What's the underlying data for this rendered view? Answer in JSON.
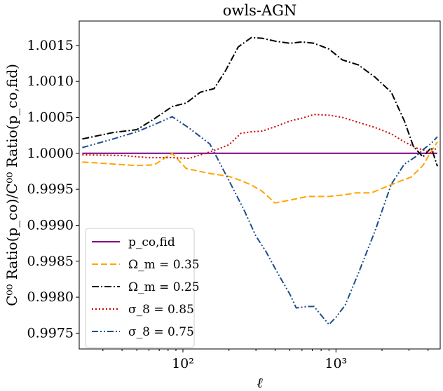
{
  "chart_data": {
    "type": "line",
    "title": "owls-AGN",
    "xlabel": "ℓ",
    "ylabel": "C⁰⁰ Ratio(p_co)/C⁰⁰ Ratio(p_co,fid)",
    "xscale": "log",
    "xlim": [
      21,
      4800
    ],
    "ylim": [
      0.99728,
      1.00184
    ],
    "x_ticks": [
      {
        "value": 100,
        "label": "10²"
      },
      {
        "value": 1000,
        "label": "10³"
      }
    ],
    "y_ticks": [
      {
        "value": 0.9975,
        "label": "0.9975"
      },
      {
        "value": 0.998,
        "label": "0.9980"
      },
      {
        "value": 0.9985,
        "label": "0.9985"
      },
      {
        "value": 0.999,
        "label": "0.9990"
      },
      {
        "value": 0.9995,
        "label": "0.9995"
      },
      {
        "value": 1.0,
        "label": "1.0000"
      },
      {
        "value": 1.0005,
        "label": "1.0005"
      },
      {
        "value": 1.001,
        "label": "1.0010"
      },
      {
        "value": 1.0015,
        "label": "1.0015"
      }
    ],
    "grid": false,
    "legend_position": "lower-left",
    "series": [
      {
        "name": "p_co,fid",
        "color": "#800080",
        "dash": "solid",
        "x": [
          22,
          4600
        ],
        "y": [
          1.0,
          1.0
        ]
      },
      {
        "name": "Ω_m = 0.35",
        "color": "#FFA500",
        "dash": "dashed",
        "x": [
          22,
          50,
          65,
          85,
          105,
          150,
          200,
          240,
          280,
          330,
          400,
          500,
          650,
          900,
          1100,
          1350,
          1700,
          2100,
          2600,
          3100,
          3700,
          4200,
          4600
        ],
        "y": [
          0.99988,
          0.99983,
          0.99984,
          1.0,
          0.99979,
          0.99972,
          0.99968,
          0.99962,
          0.99956,
          0.99947,
          0.99931,
          0.99935,
          0.9994,
          0.9994,
          0.99942,
          0.99945,
          0.99945,
          0.99953,
          0.99961,
          0.99967,
          0.99983,
          1.00003,
          1.00016
        ]
      },
      {
        "name": "Ω_m = 0.25",
        "color": "#000000",
        "dash": "dashdot",
        "x": [
          22,
          35,
          50,
          65,
          85,
          105,
          130,
          160,
          190,
          230,
          280,
          330,
          400,
          500,
          600,
          720,
          900,
          1100,
          1400,
          1800,
          2300,
          2800,
          3200,
          3700,
          4200,
          4600
        ],
        "y": [
          1.0002,
          1.00029,
          1.00033,
          1.00048,
          1.00065,
          1.0007,
          1.00085,
          1.0009,
          1.00115,
          1.00148,
          1.00161,
          1.0016,
          1.00156,
          1.00153,
          1.00155,
          1.00153,
          1.00145,
          1.0013,
          1.00123,
          1.00106,
          1.00085,
          1.00045,
          1.0001,
          0.99995,
          1.00008,
          0.99982
        ]
      },
      {
        "name": "σ_8 = 0.85",
        "color": "#CC0000",
        "dash": "dotted",
        "x": [
          22,
          40,
          60,
          85,
          110,
          140,
          170,
          200,
          240,
          280,
          330,
          400,
          500,
          600,
          720,
          900,
          1100,
          1400,
          1800,
          2300,
          2800,
          3300,
          3800,
          4200,
          4600
        ],
        "y": [
          0.99998,
          0.99997,
          0.99994,
          0.99994,
          0.99993,
          1.0,
          1.00006,
          1.00012,
          1.00028,
          1.0003,
          1.00031,
          1.00037,
          1.00045,
          1.00049,
          1.00054,
          1.00053,
          1.0005,
          1.00043,
          1.00036,
          1.00027,
          1.00016,
          1.00008,
          1.00004,
          1.0,
          1.00009
        ]
      },
      {
        "name": "σ_8 = 0.75",
        "color": "#1F4E8C",
        "dash": "dashdotdot",
        "x": [
          22,
          35,
          50,
          65,
          85,
          110,
          150,
          200,
          250,
          300,
          350,
          420,
          500,
          550,
          650,
          720,
          800,
          900,
          1000,
          1150,
          1400,
          1800,
          2300,
          2800,
          3300,
          3700,
          4200,
          4600
        ],
        "y": [
          1.00008,
          1.0002,
          1.0003,
          1.0004,
          1.00051,
          1.00035,
          1.00013,
          0.99962,
          0.99922,
          0.99885,
          0.99863,
          0.99832,
          0.99804,
          0.99785,
          0.99787,
          0.99787,
          0.99775,
          0.99762,
          0.99772,
          0.99789,
          0.99833,
          0.99892,
          0.99957,
          0.99985,
          0.99995,
          1.00005,
          1.00014,
          1.00023
        ]
      }
    ]
  }
}
